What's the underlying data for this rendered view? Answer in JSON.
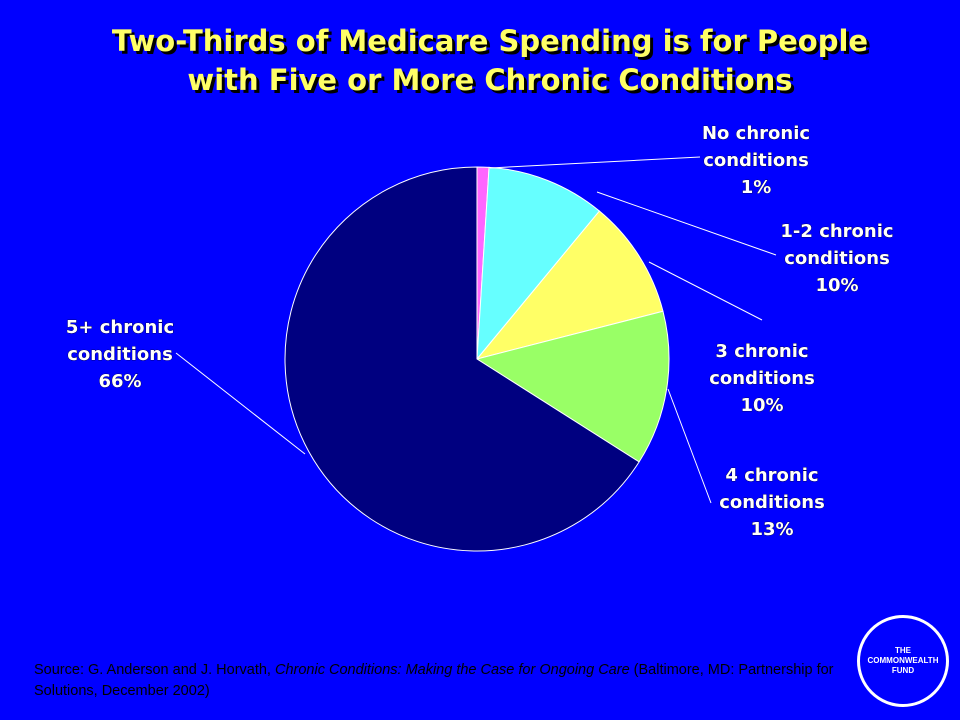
{
  "slide": {
    "title_line1": "Two-Thirds of Medicare Spending is for People",
    "title_line2": "with Five or More Chronic Conditions",
    "source_prefix": "Source: G. Anderson and J. Horvath, ",
    "source_italic": "Chronic Conditions: Making the Case for Ongoing Care",
    "source_suffix": " (Baltimore, MD: Partnership for Solutions, December 2002)",
    "logo_line1": "THE",
    "logo_line2": "COMMONWEALTH",
    "logo_line3": "FUND"
  },
  "colors": {
    "background": "#0000FF",
    "title": "#FFFF66",
    "label_text": "#FFFFFF",
    "leader_lines": "#FFFFFF",
    "slice_outline": "#FFFFFF"
  },
  "chart_data": {
    "type": "pie",
    "title": "Two-Thirds of Medicare Spending is for People with Five or More Chronic Conditions",
    "start_angle_deg": 0,
    "direction": "clockwise",
    "slices": [
      {
        "id": "none",
        "label_lines": [
          "No chronic",
          "conditions",
          "1%"
        ],
        "value": 1,
        "color": "#FF66FF"
      },
      {
        "id": "c12",
        "label_lines": [
          "1-2 chronic",
          "conditions",
          "10%"
        ],
        "value": 10,
        "color": "#66FFFF"
      },
      {
        "id": "c3",
        "label_lines": [
          "3 chronic",
          "conditions",
          "10%"
        ],
        "value": 10,
        "color": "#FFFF66"
      },
      {
        "id": "c4",
        "label_lines": [
          "4 chronic",
          "conditions",
          "13%"
        ],
        "value": 13,
        "color": "#99FF66"
      },
      {
        "id": "c5plus",
        "label_lines": [
          "5+ chronic",
          "conditions",
          "66%"
        ],
        "value": 66,
        "color": "#000080"
      }
    ]
  }
}
